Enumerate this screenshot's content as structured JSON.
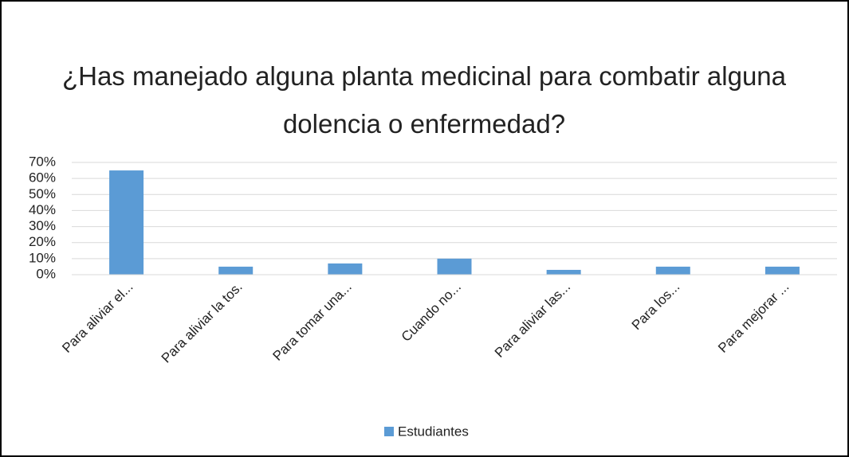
{
  "chart_data": {
    "type": "bar",
    "title": "¿Has manejado alguna planta medicinal para combatir alguna dolencia o enfermedad?",
    "categories": [
      "Para aliviar el...",
      "Para aliviar la tos.",
      "Para tomar una...",
      "Cuando no...",
      "Para aliviar las...",
      "Para los...",
      "Para mejorar ..."
    ],
    "series": [
      {
        "name": "Estudiantes",
        "color": "#5b9bd5",
        "values": [
          65,
          5,
          7,
          10,
          3,
          5,
          5
        ]
      }
    ],
    "ylim": [
      0,
      70
    ],
    "yticks": [
      {
        "value": 0,
        "label": "0%"
      },
      {
        "value": 10,
        "label": "10%"
      },
      {
        "value": 20,
        "label": "20%"
      },
      {
        "value": 30,
        "label": "30%"
      },
      {
        "value": 40,
        "label": "40%"
      },
      {
        "value": 50,
        "label": "50%"
      },
      {
        "value": 60,
        "label": "60%"
      },
      {
        "value": 70,
        "label": "70%"
      }
    ],
    "grid": true,
    "legend": "bottom"
  }
}
